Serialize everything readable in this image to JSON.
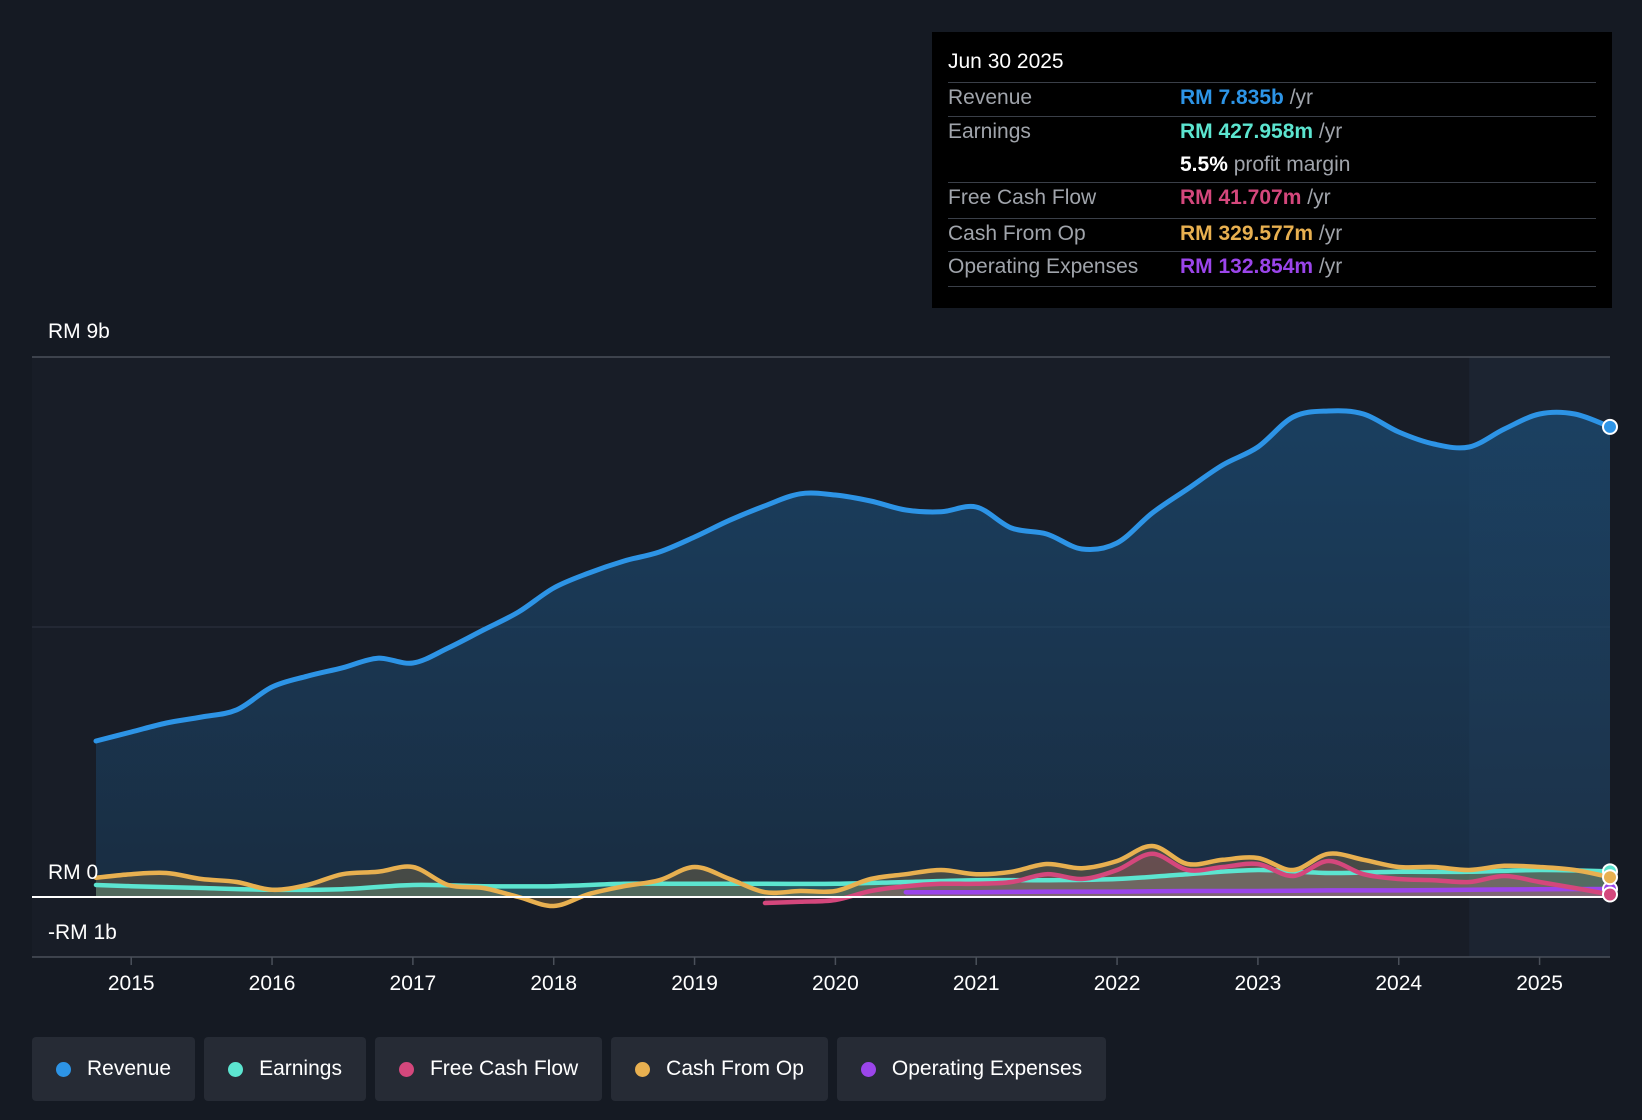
{
  "tooltip": {
    "date": "Jun 30 2025",
    "rows": [
      {
        "label": "Revenue",
        "value": "RM 7.835b",
        "unit": "/yr",
        "color": "#2d94e6"
      },
      {
        "label": "Earnings",
        "value": "RM 427.958m",
        "unit": "/yr",
        "color": "#5ce5d0"
      },
      {
        "label": "",
        "value": "5.5%",
        "unit": "profit margin",
        "color": "#ffffff"
      },
      {
        "label": "Free Cash Flow",
        "value": "RM 41.707m",
        "unit": "/yr",
        "color": "#d4477c"
      },
      {
        "label": "Cash From Op",
        "value": "RM 329.577m",
        "unit": "/yr",
        "color": "#e8b050"
      },
      {
        "label": "Operating Expenses",
        "value": "RM 132.854m",
        "unit": "/yr",
        "color": "#9b45ea"
      }
    ]
  },
  "legend": [
    {
      "label": "Revenue",
      "color": "#2d94e6"
    },
    {
      "label": "Earnings",
      "color": "#5ce5d0"
    },
    {
      "label": "Free Cash Flow",
      "color": "#d4477c"
    },
    {
      "label": "Cash From Op",
      "color": "#e8b050"
    },
    {
      "label": "Operating Expenses",
      "color": "#9b45ea"
    }
  ],
  "chart_data": {
    "type": "area",
    "title": "",
    "xlabel": "",
    "ylabel": "",
    "y_axis_labels": [
      "RM 9b",
      "RM 0",
      "-RM 1b"
    ],
    "ylim": [
      -1,
      9
    ],
    "xlim": [
      2014.5,
      2025.5
    ],
    "x_ticks": [
      2015,
      2016,
      2017,
      2018,
      2019,
      2020,
      2021,
      2022,
      2023,
      2024,
      2025
    ],
    "tick_labels": [
      "2015",
      "2016",
      "2017",
      "2018",
      "2019",
      "2020",
      "2021",
      "2022",
      "2023",
      "2024",
      "2025"
    ],
    "past_data_region_start": 2024.5,
    "series": [
      {
        "name": "Revenue",
        "color": "#2d94e6",
        "points": [
          [
            2014.75,
            2.6
          ],
          [
            2015.0,
            2.75
          ],
          [
            2015.25,
            2.9
          ],
          [
            2015.5,
            3.0
          ],
          [
            2015.75,
            3.12
          ],
          [
            2016.0,
            3.5
          ],
          [
            2016.25,
            3.68
          ],
          [
            2016.5,
            3.82
          ],
          [
            2016.75,
            3.98
          ],
          [
            2017.0,
            3.9
          ],
          [
            2017.25,
            4.15
          ],
          [
            2017.5,
            4.45
          ],
          [
            2017.75,
            4.75
          ],
          [
            2018.0,
            5.15
          ],
          [
            2018.25,
            5.4
          ],
          [
            2018.5,
            5.6
          ],
          [
            2018.75,
            5.75
          ],
          [
            2019.0,
            6.0
          ],
          [
            2019.25,
            6.28
          ],
          [
            2019.5,
            6.52
          ],
          [
            2019.75,
            6.72
          ],
          [
            2020.0,
            6.7
          ],
          [
            2020.25,
            6.6
          ],
          [
            2020.5,
            6.45
          ],
          [
            2020.75,
            6.42
          ],
          [
            2021.0,
            6.5
          ],
          [
            2021.25,
            6.15
          ],
          [
            2021.5,
            6.05
          ],
          [
            2021.75,
            5.8
          ],
          [
            2022.0,
            5.9
          ],
          [
            2022.25,
            6.4
          ],
          [
            2022.5,
            6.8
          ],
          [
            2022.75,
            7.2
          ],
          [
            2023.0,
            7.5
          ],
          [
            2023.25,
            8.0
          ],
          [
            2023.5,
            8.1
          ],
          [
            2023.75,
            8.05
          ],
          [
            2024.0,
            7.75
          ],
          [
            2024.25,
            7.55
          ],
          [
            2024.5,
            7.5
          ],
          [
            2024.75,
            7.8
          ],
          [
            2025.0,
            8.05
          ],
          [
            2025.25,
            8.05
          ],
          [
            2025.5,
            7.835
          ]
        ]
      },
      {
        "name": "Earnings",
        "color": "#5ce5d0",
        "points": [
          [
            2014.75,
            0.2
          ],
          [
            2015.0,
            0.18
          ],
          [
            2015.5,
            0.15
          ],
          [
            2016.0,
            0.12
          ],
          [
            2016.5,
            0.13
          ],
          [
            2017.0,
            0.2
          ],
          [
            2017.5,
            0.18
          ],
          [
            2018.0,
            0.18
          ],
          [
            2018.5,
            0.22
          ],
          [
            2019.0,
            0.22
          ],
          [
            2019.5,
            0.22
          ],
          [
            2020.0,
            0.22
          ],
          [
            2020.5,
            0.25
          ],
          [
            2021.0,
            0.28
          ],
          [
            2021.5,
            0.28
          ],
          [
            2022.0,
            0.3
          ],
          [
            2022.5,
            0.38
          ],
          [
            2023.0,
            0.45
          ],
          [
            2023.5,
            0.4
          ],
          [
            2024.0,
            0.42
          ],
          [
            2024.5,
            0.42
          ],
          [
            2025.0,
            0.45
          ],
          [
            2025.5,
            0.428
          ]
        ]
      },
      {
        "name": "Free Cash Flow",
        "color": "#d4477c",
        "points": [
          [
            2019.5,
            -0.1
          ],
          [
            2019.75,
            -0.08
          ],
          [
            2020.0,
            -0.05
          ],
          [
            2020.25,
            0.1
          ],
          [
            2020.5,
            0.18
          ],
          [
            2020.75,
            0.22
          ],
          [
            2021.0,
            0.22
          ],
          [
            2021.25,
            0.25
          ],
          [
            2021.5,
            0.38
          ],
          [
            2021.75,
            0.3
          ],
          [
            2022.0,
            0.45
          ],
          [
            2022.25,
            0.72
          ],
          [
            2022.5,
            0.45
          ],
          [
            2022.75,
            0.5
          ],
          [
            2023.0,
            0.55
          ],
          [
            2023.25,
            0.35
          ],
          [
            2023.5,
            0.6
          ],
          [
            2023.75,
            0.38
          ],
          [
            2024.0,
            0.3
          ],
          [
            2024.25,
            0.28
          ],
          [
            2024.5,
            0.25
          ],
          [
            2024.75,
            0.35
          ],
          [
            2025.0,
            0.25
          ],
          [
            2025.25,
            0.15
          ],
          [
            2025.5,
            0.042
          ]
        ]
      },
      {
        "name": "Cash From Op",
        "color": "#e8b050",
        "points": [
          [
            2014.75,
            0.32
          ],
          [
            2015.0,
            0.38
          ],
          [
            2015.25,
            0.4
          ],
          [
            2015.5,
            0.3
          ],
          [
            2015.75,
            0.25
          ],
          [
            2016.0,
            0.12
          ],
          [
            2016.25,
            0.2
          ],
          [
            2016.5,
            0.38
          ],
          [
            2016.75,
            0.42
          ],
          [
            2017.0,
            0.5
          ],
          [
            2017.25,
            0.2
          ],
          [
            2017.5,
            0.15
          ],
          [
            2017.75,
            0.0
          ],
          [
            2018.0,
            -0.15
          ],
          [
            2018.25,
            0.05
          ],
          [
            2018.5,
            0.18
          ],
          [
            2018.75,
            0.28
          ],
          [
            2019.0,
            0.5
          ],
          [
            2019.25,
            0.3
          ],
          [
            2019.5,
            0.08
          ],
          [
            2019.75,
            0.1
          ],
          [
            2020.0,
            0.1
          ],
          [
            2020.25,
            0.3
          ],
          [
            2020.5,
            0.38
          ],
          [
            2020.75,
            0.45
          ],
          [
            2021.0,
            0.38
          ],
          [
            2021.25,
            0.42
          ],
          [
            2021.5,
            0.55
          ],
          [
            2021.75,
            0.48
          ],
          [
            2022.0,
            0.6
          ],
          [
            2022.25,
            0.85
          ],
          [
            2022.5,
            0.55
          ],
          [
            2022.75,
            0.62
          ],
          [
            2023.0,
            0.65
          ],
          [
            2023.25,
            0.45
          ],
          [
            2023.5,
            0.72
          ],
          [
            2023.75,
            0.62
          ],
          [
            2024.0,
            0.5
          ],
          [
            2024.25,
            0.5
          ],
          [
            2024.5,
            0.45
          ],
          [
            2024.75,
            0.52
          ],
          [
            2025.0,
            0.5
          ],
          [
            2025.25,
            0.45
          ],
          [
            2025.5,
            0.33
          ]
        ]
      },
      {
        "name": "Operating Expenses",
        "color": "#9b45ea",
        "points": [
          [
            2020.5,
            0.08
          ],
          [
            2021.0,
            0.08
          ],
          [
            2021.5,
            0.09
          ],
          [
            2022.0,
            0.09
          ],
          [
            2022.5,
            0.1
          ],
          [
            2023.0,
            0.1
          ],
          [
            2023.5,
            0.11
          ],
          [
            2024.0,
            0.11
          ],
          [
            2024.5,
            0.12
          ],
          [
            2025.0,
            0.13
          ],
          [
            2025.5,
            0.133
          ]
        ]
      }
    ]
  }
}
